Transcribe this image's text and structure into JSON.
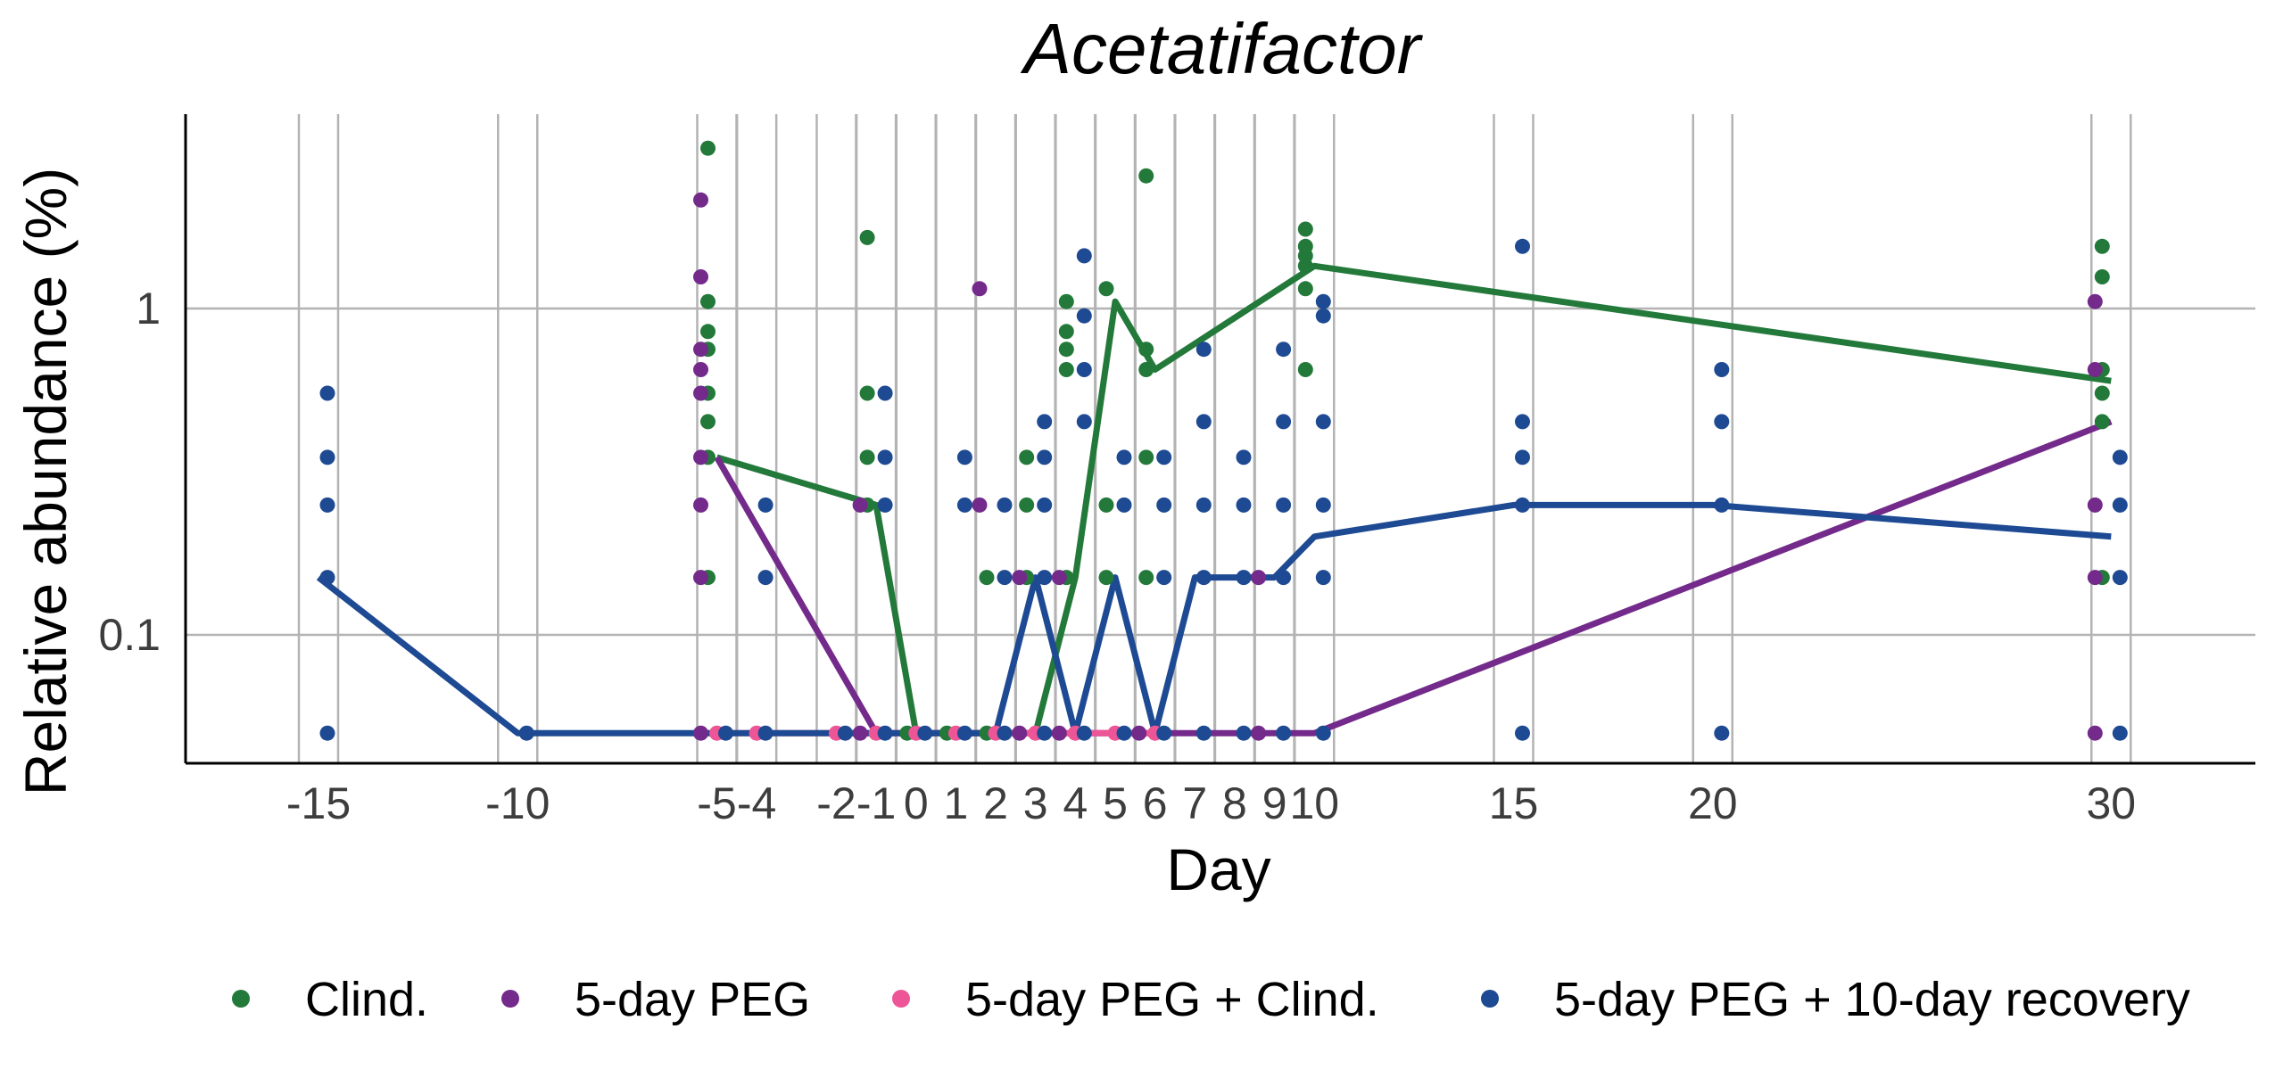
{
  "chart_data": {
    "type": "line",
    "title": "Acetatifactor",
    "xlabel": "Day",
    "ylabel": "Relative abundance (%)",
    "y_scale": "log10",
    "grid": true,
    "legend_position": "bottom",
    "x_ticks": [
      -15,
      -10,
      -5,
      -4,
      -2,
      -1,
      0,
      1,
      2,
      3,
      4,
      5,
      6,
      7,
      8,
      9,
      10,
      15,
      20,
      30
    ],
    "x_tick_labels": [
      "-15",
      "-10",
      "-5",
      "-4",
      "-2",
      "-1",
      "0",
      "1",
      "2",
      "3",
      "4",
      "5",
      "6",
      "7",
      "8",
      "9",
      "10",
      "15",
      "20",
      "30"
    ],
    "y_ticks": [
      0.1,
      1
    ],
    "y_tick_labels": [
      "0.1",
      "1"
    ],
    "series": [
      {
        "name": "Clind.",
        "color": "#23793a",
        "line": [
          [
            -5,
            0.35
          ],
          [
            -1,
            0.25
          ],
          [
            0,
            0.05
          ],
          [
            1,
            0.05
          ],
          [
            2,
            0.05
          ],
          [
            3,
            0.05
          ],
          [
            4,
            0.15
          ],
          [
            5,
            1.05
          ],
          [
            6,
            0.65
          ],
          [
            10,
            1.35
          ],
          [
            30,
            0.6
          ]
        ],
        "points": [
          [
            -5,
            3.1
          ],
          [
            -5,
            1.05
          ],
          [
            -5,
            0.85
          ],
          [
            -5,
            0.75
          ],
          [
            -5,
            0.55
          ],
          [
            -5,
            0.45
          ],
          [
            -5,
            0.35
          ],
          [
            -5,
            0.15
          ],
          [
            -1,
            1.65
          ],
          [
            -1,
            0.55
          ],
          [
            -1,
            0.35
          ],
          [
            -1,
            0.25
          ],
          [
            0,
            0.05
          ],
          [
            1,
            0.05
          ],
          [
            2,
            0.15
          ],
          [
            2,
            0.05
          ],
          [
            3,
            0.35
          ],
          [
            3,
            0.25
          ],
          [
            3,
            0.15
          ],
          [
            4,
            1.05
          ],
          [
            4,
            0.85
          ],
          [
            4,
            0.75
          ],
          [
            4,
            0.65
          ],
          [
            4,
            0.15
          ],
          [
            5,
            1.15
          ],
          [
            5,
            0.25
          ],
          [
            5,
            0.15
          ],
          [
            6,
            2.55
          ],
          [
            6,
            0.75
          ],
          [
            6,
            0.65
          ],
          [
            6,
            0.35
          ],
          [
            6,
            0.15
          ],
          [
            10,
            1.75
          ],
          [
            10,
            1.55
          ],
          [
            10,
            1.45
          ],
          [
            10,
            1.35
          ],
          [
            10,
            1.15
          ],
          [
            10,
            0.65
          ],
          [
            30,
            1.55
          ],
          [
            30,
            1.25
          ],
          [
            30,
            0.65
          ],
          [
            30,
            0.55
          ],
          [
            30,
            0.45
          ],
          [
            30,
            0.15
          ]
        ]
      },
      {
        "name": "5-day PEG",
        "color": "#732a8b",
        "line": [
          [
            -5,
            0.35
          ],
          [
            -1,
            0.05
          ],
          [
            0,
            0.05
          ],
          [
            1,
            0.05
          ],
          [
            2,
            0.05
          ],
          [
            3,
            0.05
          ],
          [
            4,
            0.05
          ],
          [
            5,
            0.05
          ],
          [
            6,
            0.05
          ],
          [
            7,
            0.05
          ],
          [
            8,
            0.05
          ],
          [
            9,
            0.05
          ],
          [
            10,
            0.05
          ],
          [
            30,
            0.45
          ]
        ],
        "points": [
          [
            -5,
            2.15
          ],
          [
            -5,
            1.25
          ],
          [
            -5,
            0.75
          ],
          [
            -5,
            0.65
          ],
          [
            -5,
            0.55
          ],
          [
            -5,
            0.35
          ],
          [
            -5,
            0.25
          ],
          [
            -5,
            0.15
          ],
          [
            -5,
            0.05
          ],
          [
            -1,
            0.25
          ],
          [
            -1,
            0.05
          ],
          [
            2,
            1.15
          ],
          [
            2,
            0.25
          ],
          [
            3,
            0.15
          ],
          [
            3,
            0.05
          ],
          [
            4,
            0.15
          ],
          [
            4,
            0.05
          ],
          [
            6,
            0.05
          ],
          [
            9,
            0.15
          ],
          [
            9,
            0.05
          ],
          [
            30,
            1.05
          ],
          [
            30,
            0.65
          ],
          [
            30,
            0.25
          ],
          [
            30,
            0.15
          ],
          [
            30,
            0.05
          ]
        ]
      },
      {
        "name": "5-day PEG + Clind.",
        "color": "#ee5596",
        "line": [
          [
            -5,
            0.05
          ],
          [
            -4,
            0.05
          ],
          [
            -2,
            0.05
          ],
          [
            -1,
            0.05
          ],
          [
            0,
            0.05
          ],
          [
            1,
            0.05
          ],
          [
            2,
            0.05
          ],
          [
            3,
            0.05
          ],
          [
            4,
            0.05
          ],
          [
            5,
            0.05
          ],
          [
            6,
            0.05
          ]
        ],
        "points": [
          [
            -5,
            0.05
          ],
          [
            -4,
            0.05
          ],
          [
            -2,
            0.05
          ],
          [
            -1,
            0.05
          ],
          [
            0,
            0.05
          ],
          [
            1,
            0.05
          ],
          [
            2,
            0.05
          ],
          [
            3,
            0.05
          ],
          [
            4,
            0.05
          ],
          [
            5,
            0.05
          ],
          [
            6,
            0.05
          ]
        ]
      },
      {
        "name": "5-day PEG + 10-day recovery",
        "color": "#1e4a93",
        "line": [
          [
            -15,
            0.15
          ],
          [
            -10,
            0.05
          ],
          [
            -5,
            0.05
          ],
          [
            -4,
            0.05
          ],
          [
            -2,
            0.05
          ],
          [
            -1,
            0.05
          ],
          [
            0,
            0.05
          ],
          [
            1,
            0.05
          ],
          [
            2,
            0.05
          ],
          [
            3,
            0.15
          ],
          [
            4,
            0.05
          ],
          [
            5,
            0.15
          ],
          [
            6,
            0.05
          ],
          [
            7,
            0.15
          ],
          [
            8,
            0.15
          ],
          [
            9,
            0.15
          ],
          [
            10,
            0.2
          ],
          [
            15,
            0.25
          ],
          [
            20,
            0.25
          ],
          [
            30,
            0.2
          ]
        ],
        "points": [
          [
            -15,
            0.55
          ],
          [
            -15,
            0.35
          ],
          [
            -15,
            0.25
          ],
          [
            -15,
            0.15
          ],
          [
            -15,
            0.05
          ],
          [
            -10,
            0.05
          ],
          [
            -5,
            0.05
          ],
          [
            -4,
            0.25
          ],
          [
            -4,
            0.15
          ],
          [
            -4,
            0.05
          ],
          [
            -2,
            0.05
          ],
          [
            -1,
            0.55
          ],
          [
            -1,
            0.35
          ],
          [
            -1,
            0.25
          ],
          [
            -1,
            0.05
          ],
          [
            0,
            0.05
          ],
          [
            1,
            0.35
          ],
          [
            1,
            0.25
          ],
          [
            1,
            0.05
          ],
          [
            2,
            0.25
          ],
          [
            2,
            0.15
          ],
          [
            2,
            0.05
          ],
          [
            3,
            0.45
          ],
          [
            3,
            0.35
          ],
          [
            3,
            0.25
          ],
          [
            3,
            0.15
          ],
          [
            3,
            0.05
          ],
          [
            4,
            1.45
          ],
          [
            4,
            0.95
          ],
          [
            4,
            0.65
          ],
          [
            4,
            0.45
          ],
          [
            4,
            0.05
          ],
          [
            5,
            0.35
          ],
          [
            5,
            0.25
          ],
          [
            5,
            0.05
          ],
          [
            6,
            0.35
          ],
          [
            6,
            0.25
          ],
          [
            6,
            0.15
          ],
          [
            6,
            0.05
          ],
          [
            7,
            0.75
          ],
          [
            7,
            0.45
          ],
          [
            7,
            0.25
          ],
          [
            7,
            0.15
          ],
          [
            7,
            0.05
          ],
          [
            8,
            0.35
          ],
          [
            8,
            0.25
          ],
          [
            8,
            0.15
          ],
          [
            8,
            0.05
          ],
          [
            9,
            0.75
          ],
          [
            9,
            0.45
          ],
          [
            9,
            0.25
          ],
          [
            9,
            0.15
          ],
          [
            9,
            0.05
          ],
          [
            10,
            1.05
          ],
          [
            10,
            0.95
          ],
          [
            10,
            0.45
          ],
          [
            10,
            0.25
          ],
          [
            10,
            0.15
          ],
          [
            10,
            0.05
          ],
          [
            15,
            1.55
          ],
          [
            15,
            0.45
          ],
          [
            15,
            0.35
          ],
          [
            15,
            0.25
          ],
          [
            15,
            0.05
          ],
          [
            20,
            0.65
          ],
          [
            20,
            0.45
          ],
          [
            20,
            0.25
          ],
          [
            20,
            0.05
          ],
          [
            30,
            0.35
          ],
          [
            30,
            0.25
          ],
          [
            30,
            0.15
          ],
          [
            30,
            0.05
          ]
        ]
      }
    ]
  }
}
